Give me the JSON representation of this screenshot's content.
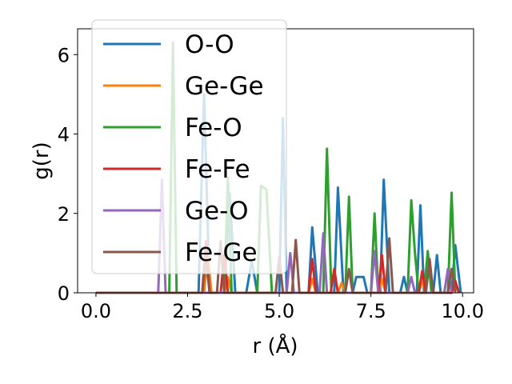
{
  "chart_data": {
    "type": "line",
    "xlabel": "r (Å)",
    "ylabel": "g(r)",
    "xlim": [
      -0.5,
      10.3
    ],
    "ylim": [
      0,
      6.65
    ],
    "xticks": [
      0.0,
      2.5,
      5.0,
      7.5,
      10.0
    ],
    "xtick_labels": [
      "0.0",
      "2.5",
      "5.0",
      "7.5",
      "10.0"
    ],
    "yticks": [
      0,
      2,
      4,
      6
    ],
    "ytick_labels": [
      "0",
      "2",
      "4",
      "6"
    ],
    "grid": false,
    "legend_position": "upper-left",
    "series": [
      {
        "name": "O-O",
        "color": "#1f77b4",
        "points": [
          [
            0,
            0
          ],
          [
            2.8,
            0
          ],
          [
            2.95,
            5.0
          ],
          [
            3.1,
            0
          ],
          [
            3.5,
            0
          ],
          [
            3.65,
            2.5
          ],
          [
            3.8,
            0
          ],
          [
            4.1,
            0
          ],
          [
            4.25,
            0.8
          ],
          [
            4.4,
            0
          ],
          [
            5.0,
            0
          ],
          [
            5.1,
            4.4
          ],
          [
            5.2,
            0
          ],
          [
            5.8,
            0
          ],
          [
            5.9,
            1.65
          ],
          [
            6.05,
            0
          ],
          [
            6.5,
            0
          ],
          [
            6.6,
            2.65
          ],
          [
            6.75,
            0
          ],
          [
            7.0,
            0
          ],
          [
            7.1,
            0.4
          ],
          [
            7.3,
            0.4
          ],
          [
            7.4,
            0
          ],
          [
            7.75,
            0
          ],
          [
            7.85,
            2.85
          ],
          [
            8.0,
            0
          ],
          [
            8.3,
            0
          ],
          [
            8.4,
            0.4
          ],
          [
            8.5,
            0
          ],
          [
            8.75,
            0
          ],
          [
            8.85,
            2.2
          ],
          [
            8.95,
            0
          ],
          [
            9.2,
            0
          ],
          [
            9.3,
            0.95
          ],
          [
            9.4,
            0
          ],
          [
            9.7,
            0
          ],
          [
            9.8,
            1.2
          ],
          [
            9.95,
            0
          ]
        ]
      },
      {
        "name": "Ge-Ge",
        "color": "#ff7f0e",
        "points": [
          [
            0,
            0
          ],
          [
            2.95,
            0
          ],
          [
            3.05,
            1.0
          ],
          [
            3.15,
            0
          ],
          [
            3.5,
            0
          ],
          [
            3.6,
            0.4
          ],
          [
            3.7,
            0
          ],
          [
            5.8,
            0
          ],
          [
            5.9,
            0.35
          ],
          [
            6.0,
            0
          ],
          [
            6.6,
            0
          ],
          [
            6.7,
            0.25
          ],
          [
            6.8,
            0
          ],
          [
            7.7,
            0
          ],
          [
            7.8,
            0.35
          ],
          [
            7.9,
            0
          ],
          [
            8.8,
            0
          ],
          [
            8.9,
            0.3
          ],
          [
            9.0,
            0
          ],
          [
            9.7,
            0
          ],
          [
            9.8,
            0.2
          ],
          [
            9.9,
            0
          ]
        ]
      },
      {
        "name": "Fe-O",
        "color": "#2ca02c",
        "points": [
          [
            0,
            0
          ],
          [
            2.0,
            0
          ],
          [
            2.1,
            6.3
          ],
          [
            2.2,
            0
          ],
          [
            3.5,
            0
          ],
          [
            3.6,
            2.9
          ],
          [
            3.7,
            0
          ],
          [
            4.4,
            0
          ],
          [
            4.5,
            2.7
          ],
          [
            4.65,
            2.6
          ],
          [
            4.8,
            0
          ],
          [
            6.2,
            0
          ],
          [
            6.3,
            3.63
          ],
          [
            6.42,
            0
          ],
          [
            6.8,
            0
          ],
          [
            6.9,
            2.42
          ],
          [
            7.0,
            0
          ],
          [
            7.5,
            0
          ],
          [
            7.6,
            2.0
          ],
          [
            7.7,
            0
          ],
          [
            8.5,
            0
          ],
          [
            8.6,
            2.33
          ],
          [
            8.7,
            1.0
          ],
          [
            8.8,
            0
          ],
          [
            8.95,
            0
          ],
          [
            9.05,
            1.05
          ],
          [
            9.15,
            0
          ],
          [
            9.6,
            0
          ],
          [
            9.7,
            2.52
          ],
          [
            9.8,
            0
          ]
        ]
      },
      {
        "name": "Fe-Fe",
        "color": "#d62728",
        "points": [
          [
            0,
            0
          ],
          [
            2.9,
            0
          ],
          [
            3.0,
            1.3
          ],
          [
            3.1,
            0
          ],
          [
            3.4,
            0
          ],
          [
            3.5,
            0.95
          ],
          [
            3.6,
            0
          ],
          [
            5.8,
            0
          ],
          [
            5.9,
            0.85
          ],
          [
            6.0,
            0
          ],
          [
            6.4,
            0
          ],
          [
            6.5,
            0.6
          ],
          [
            6.6,
            0
          ],
          [
            7.7,
            0
          ],
          [
            7.8,
            0.95
          ],
          [
            7.9,
            0
          ],
          [
            8.8,
            0
          ],
          [
            8.9,
            0.55
          ],
          [
            9.0,
            0
          ],
          [
            9.7,
            0
          ],
          [
            9.8,
            0.3
          ],
          [
            9.9,
            0
          ]
        ]
      },
      {
        "name": "Ge-O",
        "color": "#9467bd",
        "points": [
          [
            0,
            0
          ],
          [
            1.7,
            0
          ],
          [
            1.8,
            2.85
          ],
          [
            1.9,
            0
          ],
          [
            5.2,
            0
          ],
          [
            5.3,
            1.0
          ],
          [
            5.4,
            0
          ],
          [
            6.1,
            0
          ],
          [
            6.2,
            1.5
          ],
          [
            6.3,
            0
          ],
          [
            7.5,
            0
          ],
          [
            7.6,
            1.05
          ],
          [
            7.7,
            0
          ],
          [
            8.5,
            0
          ],
          [
            8.6,
            0.4
          ],
          [
            8.7,
            0
          ],
          [
            9.5,
            0
          ],
          [
            9.6,
            0.6
          ],
          [
            9.7,
            0
          ]
        ]
      },
      {
        "name": "Fe-Ge",
        "color": "#8c564b",
        "points": [
          [
            0,
            0
          ],
          [
            2.9,
            0
          ],
          [
            3.0,
            0.9
          ],
          [
            3.1,
            0
          ],
          [
            3.3,
            0
          ],
          [
            3.4,
            1.3
          ],
          [
            3.5,
            0
          ],
          [
            4.9,
            0
          ],
          [
            5.0,
            0.9
          ],
          [
            5.1,
            0
          ],
          [
            5.35,
            0
          ],
          [
            5.45,
            1.33
          ],
          [
            5.55,
            0
          ],
          [
            6.8,
            0
          ],
          [
            6.9,
            0.6
          ],
          [
            7.0,
            0
          ],
          [
            7.9,
            0
          ],
          [
            8.0,
            1.37
          ],
          [
            8.1,
            0
          ],
          [
            9.0,
            0
          ],
          [
            9.1,
            0.85
          ],
          [
            9.2,
            0
          ],
          [
            9.6,
            0
          ],
          [
            9.7,
            0.6
          ],
          [
            9.8,
            0
          ]
        ]
      }
    ]
  }
}
